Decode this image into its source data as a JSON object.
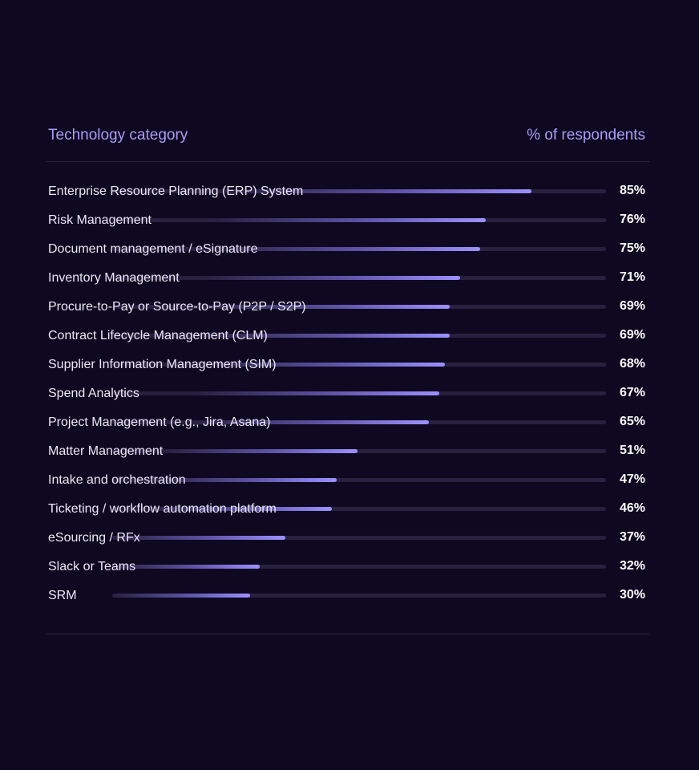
{
  "chart_data": {
    "type": "bar",
    "orientation": "horizontal",
    "column_headers": {
      "category": "Technology category",
      "value": "% of respondents"
    },
    "xlim": [
      0,
      100
    ],
    "unit": "%",
    "categories": [
      "Enterprise Resource Planning (ERP) System",
      "Risk Management",
      "Document management / eSignature",
      "Inventory Management",
      "Procure-to-Pay or Source-to-Pay (P2P / S2P)",
      "Contract Lifecycle Management (CLM)",
      "Supplier Information Management (SIM)",
      "Spend Analytics",
      "Project Management (e.g., Jira, Asana)",
      "Matter Management",
      "Intake and orchestration",
      "Ticketing / workflow automation platform",
      "eSourcing / RFx",
      "Slack or Teams",
      "SRM"
    ],
    "values": [
      85,
      76,
      75,
      71,
      69,
      69,
      68,
      67,
      65,
      51,
      47,
      46,
      37,
      32,
      30
    ],
    "value_labels": [
      "85%",
      "76%",
      "75%",
      "71%",
      "69%",
      "69%",
      "68%",
      "67%",
      "65%",
      "51%",
      "47%",
      "46%",
      "37%",
      "32%",
      "30%"
    ],
    "colors": {
      "background": "#0e0820",
      "header_text": "#a99ef7",
      "bar": "#9c90ff",
      "track": "#272140",
      "label_text": "#ece9f6",
      "value_text": "#ffffff"
    }
  }
}
